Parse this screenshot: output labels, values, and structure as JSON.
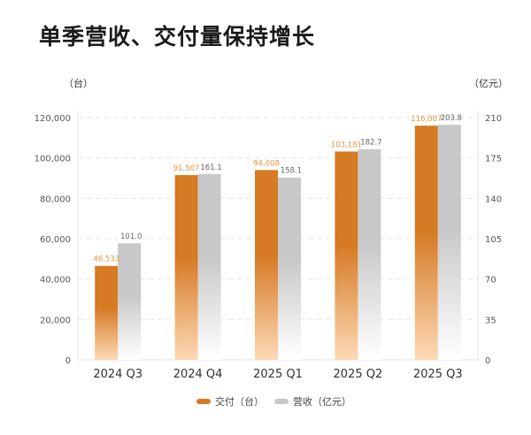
{
  "title": "单季营收、交付量保持增长",
  "colors": {
    "deliveries": "#D67A24",
    "deliveries_fade": "#FDD9B5",
    "revenue": "#C8C8C8",
    "revenue_fade": "#FFFFFF",
    "label_deliveries": "#E0953F",
    "label_revenue": "#666666"
  },
  "chart_data": {
    "type": "bar",
    "categories": [
      "2024 Q3",
      "2024 Q4",
      "2025 Q1",
      "2025 Q2",
      "2025 Q3"
    ],
    "series": [
      {
        "name": "交付（台）",
        "axis": "left",
        "values": [
          46533,
          91507,
          94008,
          103181,
          116007
        ],
        "labels": [
          "46,533",
          "91,507",
          "94,008",
          "103,181",
          "116,007"
        ]
      },
      {
        "name": "营收（亿元）",
        "axis": "right",
        "values": [
          101.0,
          161.1,
          158.1,
          182.7,
          203.8
        ],
        "labels": [
          "101.0",
          "161.1",
          "158.1",
          "182.7",
          "203.8"
        ]
      }
    ],
    "y_left": {
      "unit": "（台）",
      "lim": [
        0,
        120000
      ],
      "ticks": [
        "0",
        "20,000",
        "40,000",
        "60,000",
        "80,000",
        "100,000",
        "120,000"
      ]
    },
    "y_right": {
      "unit": "（亿元）",
      "lim": [
        0,
        210
      ],
      "ticks": [
        "0",
        "35",
        "70",
        "105",
        "140",
        "175",
        "210"
      ]
    },
    "grid": true,
    "legend": "bottom"
  }
}
